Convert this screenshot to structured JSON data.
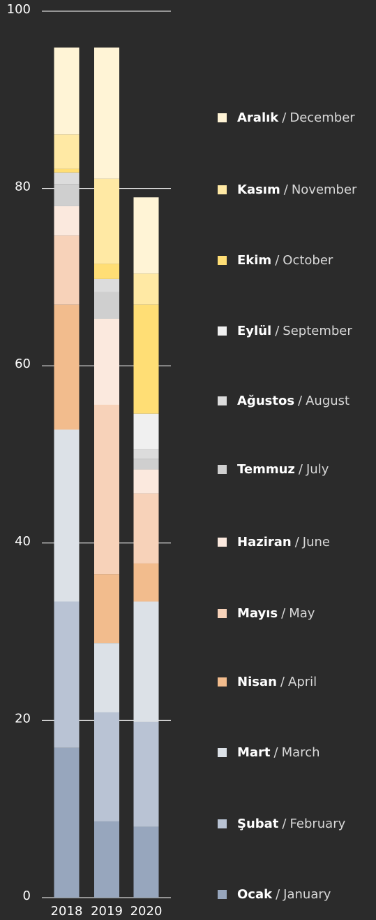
{
  "chart_data": {
    "type": "stacked_bar",
    "categories": [
      "2018",
      "2019",
      "2020"
    ],
    "ylim": [
      0,
      100
    ],
    "yticks": [
      0,
      20,
      40,
      60,
      80,
      100
    ],
    "grid": true,
    "legend_separator": "/",
    "series": [
      {
        "name": "Ocak",
        "name_en": "January",
        "color": "#97a6bd",
        "values": [
          16.9,
          8.6,
          8.0
        ]
      },
      {
        "name": "Şubat",
        "name_en": "February",
        "color": "#b9c3d4",
        "values": [
          16.5,
          12.3,
          11.8
        ]
      },
      {
        "name": "Mart",
        "name_en": "March",
        "color": "#dce1e7",
        "values": [
          19.4,
          7.8,
          13.6
        ]
      },
      {
        "name": "Nisan",
        "name_en": "April",
        "color": "#f2bc8d",
        "values": [
          14.1,
          7.8,
          4.3
        ]
      },
      {
        "name": "Mayıs",
        "name_en": "May",
        "color": "#f7d2b9",
        "values": [
          7.8,
          19.1,
          7.9
        ]
      },
      {
        "name": "Haziran",
        "name_en": "June",
        "color": "#fbe9de",
        "values": [
          3.3,
          9.7,
          2.7
        ]
      },
      {
        "name": "Temmuz",
        "name_en": "July",
        "color": "#cfcfcf",
        "values": [
          2.5,
          3.0,
          1.2
        ]
      },
      {
        "name": "Ağustos",
        "name_en": "August",
        "color": "#dcdcdc",
        "values": [
          1.3,
          1.5,
          1.1
        ]
      },
      {
        "name": "Eylül",
        "name_en": "September",
        "color": "#f0f0f0",
        "values": [
          0,
          0,
          4.0
        ]
      },
      {
        "name": "Ekim",
        "name_en": "October",
        "color": "#ffde75",
        "values": [
          0.4,
          1.7,
          12.3
        ]
      },
      {
        "name": "Kasım",
        "name_en": "November",
        "color": "#ffe9a4",
        "values": [
          3.9,
          9.6,
          3.5
        ]
      },
      {
        "name": "Aralık",
        "name_en": "December",
        "color": "#fff4d6",
        "values": [
          9.8,
          14.8,
          8.6
        ]
      }
    ]
  }
}
